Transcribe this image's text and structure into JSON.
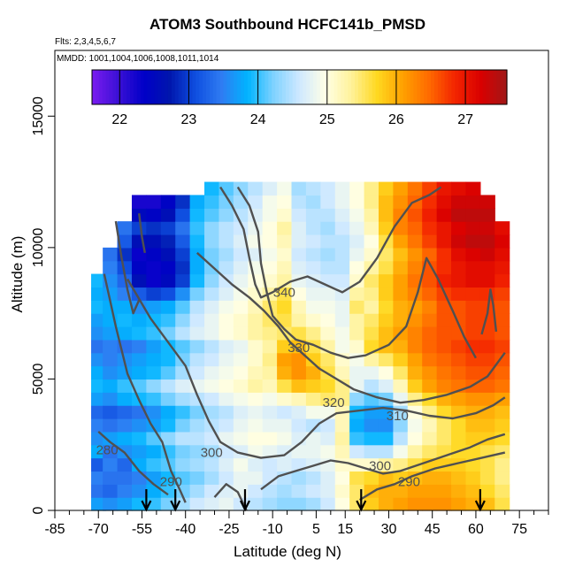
{
  "chart_data": {
    "type": "heatmap",
    "title": "ATOM3 Southbound HCFC141b_PMSD",
    "flights_label": "Flts: 2,3,4,5,6,7",
    "dates_label": "MMDD: 1001,1004,1006,1008,1011,1014",
    "xlabel": "Latitude (deg N)",
    "ylabel": "Altitude (m)",
    "xlim": [
      -85,
      85
    ],
    "ylim": [
      0,
      17500
    ],
    "x_ticks_labeled": [
      -85,
      -70,
      -55,
      -40,
      -25,
      -10,
      5,
      15,
      30,
      45,
      60,
      75
    ],
    "x_ticks_minor": [
      -80,
      -75,
      -65,
      -60,
      -50,
      -45,
      -35,
      -30,
      -20,
      -15,
      -5,
      0,
      10,
      20,
      25,
      35,
      40,
      50,
      55,
      65,
      70,
      80,
      85
    ],
    "y_ticks": [
      0,
      5000,
      10000,
      15000
    ],
    "colorbar": {
      "range": [
        21.6,
        27.6
      ],
      "ticks": [
        22,
        23,
        24,
        25,
        26,
        27
      ],
      "colors": [
        "#7a1cf0",
        "#3c10d6",
        "#0000c8",
        "#0016ad",
        "#0f4fe0",
        "#2f7cf2",
        "#00b4ff",
        "#7fd2ff",
        "#cfe9ff",
        "#ffffe6",
        "#fff29a",
        "#ffd820",
        "#ffa000",
        "#ff6a00",
        "#f32400",
        "#d90000",
        "#a01818"
      ]
    },
    "contours": [
      {
        "label": "340",
        "label_lat": -6
      },
      {
        "label": "330",
        "label_lat": -1
      },
      {
        "label": "320",
        "label_lat": 11
      },
      {
        "label": "310",
        "label_lat": 33
      },
      {
        "label": "300",
        "label_lat": -31
      },
      {
        "label": "300",
        "label_lat": 27
      },
      {
        "label": "290",
        "label_lat": -45
      },
      {
        "label": "290",
        "label_lat": 37
      },
      {
        "label": "280",
        "label_lat": -67
      }
    ],
    "profile_latitudes": [
      -53.5,
      -43.5,
      -19.5,
      20.5,
      61.5
    ],
    "columns": [
      {
        "lat": -70,
        "top": 9000,
        "v": [
          23.7,
          23.4,
          23.5,
          23.2,
          23.8,
          23.6,
          23.5,
          23.3,
          23.7,
          23.9,
          23.8,
          23.6,
          23.4,
          23.6,
          23.7,
          23.9,
          23.8,
          23.9
        ]
      },
      {
        "lat": -66,
        "top": 10000,
        "v": [
          23.6,
          23.3,
          23.4,
          23.5,
          23.4,
          23.7,
          23.4,
          23.2,
          23.6,
          23.8,
          23.6,
          23.5,
          23.5,
          23.7,
          23.8,
          23.8,
          23.7,
          23.6,
          23.5,
          23.4
        ]
      },
      {
        "lat": -61,
        "top": 11000,
        "v": [
          23.7,
          23.5,
          23.4,
          23.3,
          23.6,
          23.8,
          23.5,
          23.3,
          23.8,
          24.0,
          23.7,
          23.6,
          23.4,
          23.8,
          23.9,
          23.8,
          23.5,
          23.3,
          23.1,
          22.9,
          23.2,
          23.4
        ]
      },
      {
        "lat": -56,
        "top": 12000,
        "v": [
          23.9,
          23.6,
          23.5,
          23.8,
          23.7,
          23.9,
          23.6,
          23.4,
          23.9,
          24.1,
          23.8,
          23.7,
          23.5,
          23.9,
          23.8,
          23.6,
          23.2,
          22.6,
          22.4,
          22.3,
          22.6,
          23.0,
          22.5,
          22.2
        ]
      },
      {
        "lat": -51,
        "top": 12000,
        "v": [
          24.0,
          23.8,
          23.7,
          24.0,
          23.8,
          24.1,
          23.7,
          23.6,
          24.0,
          24.3,
          23.9,
          23.8,
          23.7,
          24.0,
          23.9,
          23.7,
          23.0,
          22.3,
          22.3,
          22.4,
          22.6,
          22.9,
          22.4,
          22.2
        ]
      },
      {
        "lat": -46,
        "top": 12000,
        "v": [
          24.2,
          24.0,
          23.9,
          24.1,
          24.0,
          24.3,
          23.9,
          23.8,
          24.2,
          24.5,
          24.1,
          23.9,
          23.9,
          24.2,
          24.0,
          23.8,
          23.1,
          22.5,
          22.4,
          22.6,
          22.8,
          23.0,
          22.6,
          22.4
        ]
      },
      {
        "lat": -41,
        "top": 12000,
        "v": [
          24.4,
          24.2,
          24.1,
          24.3,
          24.2,
          24.5,
          24.2,
          24.0,
          24.4,
          24.7,
          24.4,
          24.2,
          24.1,
          24.5,
          24.3,
          24.1,
          23.6,
          23.0,
          22.9,
          23.0,
          23.2,
          23.4,
          23.1,
          22.9
        ]
      },
      {
        "lat": -36,
        "top": 12000,
        "v": [
          24.6,
          24.4,
          24.2,
          24.4,
          24.3,
          24.5,
          24.4,
          24.2,
          24.5,
          24.8,
          24.6,
          24.5,
          24.3,
          24.7,
          24.6,
          24.5,
          24.2,
          23.9,
          23.8,
          23.8,
          23.9,
          24.0,
          23.9,
          23.8
        ]
      },
      {
        "lat": -31,
        "top": 12500,
        "v": [
          24.7,
          24.6,
          24.4,
          24.5,
          24.4,
          24.6,
          24.5,
          24.4,
          24.6,
          24.9,
          24.8,
          24.6,
          24.5,
          24.8,
          24.8,
          24.7,
          24.5,
          24.3,
          24.2,
          24.2,
          24.3,
          24.3,
          24.1,
          24.0,
          23.9
        ]
      },
      {
        "lat": -26,
        "top": 12500,
        "v": [
          24.8,
          24.7,
          24.6,
          24.7,
          24.6,
          24.8,
          24.6,
          24.5,
          24.8,
          25.0,
          24.9,
          24.8,
          24.7,
          25.0,
          25.0,
          24.9,
          24.7,
          24.6,
          24.5,
          24.4,
          24.5,
          24.5,
          24.3,
          24.2,
          24.1
        ]
      },
      {
        "lat": -21,
        "top": 12500,
        "v": [
          24.6,
          24.8,
          24.8,
          24.9,
          24.7,
          24.9,
          24.8,
          24.7,
          24.9,
          25.1,
          25.0,
          24.9,
          24.8,
          25.1,
          25.1,
          25.0,
          24.9,
          24.8,
          24.7,
          24.6,
          24.7,
          24.6,
          24.5,
          24.4,
          24.3
        ]
      },
      {
        "lat": -16,
        "top": 12500,
        "v": [
          24.5,
          24.6,
          24.8,
          24.7,
          24.9,
          25.0,
          24.9,
          24.8,
          25.0,
          25.3,
          25.2,
          25.1,
          25.1,
          25.3,
          25.3,
          25.2,
          25.1,
          25.0,
          24.9,
          24.7,
          24.9,
          24.8,
          24.7,
          24.6,
          24.5
        ]
      },
      {
        "lat": -11,
        "top": 12500,
        "v": [
          24.4,
          24.5,
          24.6,
          24.6,
          24.8,
          25.0,
          24.8,
          24.7,
          24.9,
          25.2,
          25.3,
          25.4,
          25.3,
          25.4,
          25.5,
          25.5,
          25.3,
          25.1,
          25.0,
          24.9,
          25.0,
          25.0,
          24.9,
          24.9,
          24.7
        ]
      },
      {
        "lat": -6,
        "top": 12500,
        "v": [
          24.3,
          24.4,
          24.5,
          24.7,
          24.7,
          24.9,
          24.8,
          24.6,
          25.1,
          25.6,
          26.0,
          26.1,
          25.8,
          25.5,
          25.6,
          25.7,
          25.6,
          25.3,
          25.2,
          25.1,
          25.2,
          25.3,
          25.1,
          25.0,
          24.9
        ]
      },
      {
        "lat": -1,
        "top": 12500,
        "v": [
          24.3,
          24.5,
          24.4,
          24.6,
          24.8,
          24.7,
          24.6,
          24.7,
          25.2,
          25.9,
          26.2,
          26.2,
          25.9,
          25.6,
          25.3,
          25.2,
          25.0,
          24.8,
          24.7,
          24.6,
          24.7,
          24.7,
          24.6,
          24.5,
          24.4
        ]
      },
      {
        "lat": 4,
        "top": 12500,
        "v": [
          24.4,
          24.6,
          24.5,
          24.7,
          24.8,
          24.8,
          24.5,
          24.9,
          25.4,
          25.8,
          26.0,
          25.8,
          25.6,
          25.4,
          25.1,
          24.9,
          24.8,
          24.7,
          24.6,
          24.5,
          24.6,
          24.5,
          24.5,
          24.4,
          24.5
        ]
      },
      {
        "lat": 9,
        "top": 12500,
        "v": [
          24.6,
          24.7,
          24.7,
          24.8,
          24.9,
          24.7,
          24.6,
          24.9,
          25.5,
          25.7,
          25.6,
          25.5,
          25.3,
          25.1,
          25.0,
          24.9,
          24.8,
          24.6,
          24.5,
          24.4,
          24.5,
          24.4,
          24.5,
          24.6,
          24.6
        ]
      },
      {
        "lat": 14,
        "top": 12500,
        "v": [
          25.0,
          25.1,
          25.0,
          25.1,
          25.2,
          25.3,
          25.2,
          25.2,
          25.4,
          25.4,
          25.2,
          25.1,
          24.9,
          24.9,
          24.8,
          24.8,
          24.7,
          24.6,
          24.5,
          24.5,
          24.5,
          24.6,
          24.7,
          24.8,
          24.8
        ]
      },
      {
        "lat": 19,
        "top": 12500,
        "v": [
          25.5,
          25.5,
          25.6,
          25.1,
          24.6,
          24.0,
          23.8,
          23.9,
          24.3,
          24.8,
          24.8,
          24.9,
          25.1,
          25.3,
          25.3,
          25.5,
          25.3,
          25.1,
          25.0,
          24.8,
          24.7,
          24.8,
          24.9,
          25.0,
          25.0
        ]
      },
      {
        "lat": 24,
        "top": 12500,
        "v": [
          25.8,
          25.9,
          25.7,
          25.1,
          24.5,
          23.9,
          23.6,
          23.7,
          24.1,
          24.5,
          24.8,
          25.3,
          25.7,
          25.6,
          25.5,
          25.3,
          25.4,
          25.5,
          25.3,
          25.1,
          25.0,
          25.2,
          25.3,
          25.4,
          25.4
        ]
      },
      {
        "lat": 29,
        "top": 12500,
        "v": [
          26.0,
          26.0,
          25.9,
          25.3,
          24.5,
          23.9,
          23.6,
          23.7,
          24.2,
          24.7,
          25.0,
          25.5,
          25.9,
          25.9,
          25.8,
          25.7,
          25.8,
          25.8,
          25.6,
          25.5,
          25.6,
          25.8,
          25.9,
          25.9,
          25.8
        ]
      },
      {
        "lat": 34,
        "top": 12500,
        "v": [
          26.1,
          26.0,
          25.8,
          25.4,
          24.9,
          24.5,
          24.3,
          24.4,
          24.8,
          25.2,
          25.5,
          25.8,
          26.0,
          26.1,
          26.0,
          26.0,
          26.1,
          26.1,
          26.0,
          25.9,
          26.1,
          26.3,
          26.3,
          26.2,
          26.1
        ]
      },
      {
        "lat": 39,
        "top": 12500,
        "v": [
          26.2,
          26.1,
          25.9,
          25.6,
          25.3,
          25.0,
          24.9,
          25.0,
          25.4,
          25.8,
          26.0,
          26.1,
          26.3,
          26.3,
          26.2,
          26.1,
          26.3,
          26.4,
          26.3,
          26.2,
          26.4,
          26.5,
          26.6,
          26.5,
          26.4
        ]
      },
      {
        "lat": 44,
        "top": 12500,
        "v": [
          26.2,
          26.1,
          26.0,
          25.8,
          25.5,
          25.3,
          25.2,
          25.4,
          25.7,
          26.1,
          26.2,
          26.4,
          26.5,
          26.5,
          26.4,
          26.3,
          26.5,
          26.6,
          26.6,
          26.5,
          26.7,
          26.8,
          26.9,
          26.8,
          26.7
        ]
      },
      {
        "lat": 49,
        "top": 12500,
        "v": [
          26.2,
          26.1,
          26.0,
          25.8,
          25.6,
          25.5,
          25.5,
          25.7,
          26.0,
          26.3,
          26.4,
          26.5,
          26.6,
          26.6,
          26.6,
          26.6,
          26.7,
          26.9,
          26.8,
          26.8,
          27.0,
          27.0,
          27.2,
          27.1,
          27.0
        ]
      },
      {
        "lat": 54,
        "top": 12500,
        "v": [
          26.1,
          26.0,
          25.9,
          25.8,
          25.7,
          25.7,
          25.7,
          25.9,
          26.1,
          26.4,
          26.5,
          26.6,
          26.7,
          26.6,
          26.6,
          26.6,
          26.8,
          27.0,
          27.0,
          27.1,
          27.3,
          27.2,
          27.4,
          27.3,
          27.1
        ]
      },
      {
        "lat": 59,
        "top": 12500,
        "v": [
          26.0,
          25.9,
          25.8,
          25.7,
          25.7,
          25.8,
          25.9,
          26.0,
          26.2,
          26.5,
          26.6,
          26.7,
          26.8,
          26.7,
          26.7,
          26.7,
          26.8,
          27.1,
          27.1,
          27.2,
          27.4,
          27.3,
          27.4,
          27.3,
          27.2
        ]
      },
      {
        "lat": 64,
        "top": 12000,
        "v": [
          25.9,
          25.7,
          25.6,
          25.6,
          25.6,
          25.8,
          25.9,
          26.0,
          26.2,
          26.5,
          26.6,
          26.7,
          26.8,
          26.7,
          26.7,
          26.7,
          26.8,
          27.1,
          27.1,
          27.3,
          27.4,
          27.3,
          27.4,
          27.3
        ]
      },
      {
        "lat": 69,
        "top": 11000,
        "v": [
          25.6,
          25.5,
          25.4,
          25.4,
          25.5,
          25.7,
          25.8,
          25.9,
          26.1,
          26.4,
          26.5,
          26.6,
          26.7,
          26.6,
          26.6,
          26.6,
          26.7,
          26.9,
          27.0,
          27.1,
          27.2,
          27.1
        ]
      }
    ]
  }
}
